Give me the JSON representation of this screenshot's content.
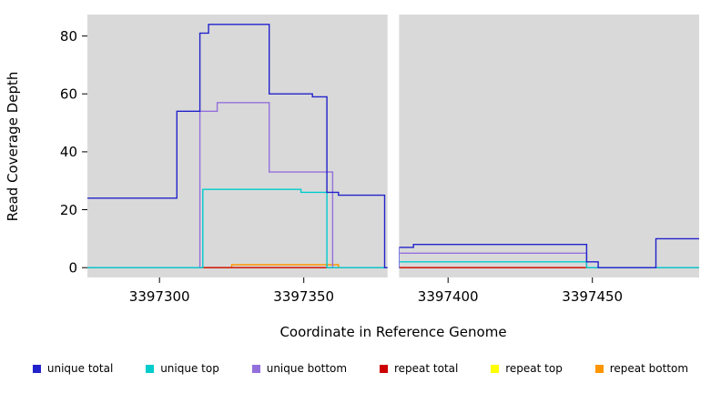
{
  "chart_data": {
    "type": "line",
    "line_style": "step",
    "title": "",
    "xlabel": "Coordinate in Reference Genome",
    "ylabel": "Read Coverage Depth",
    "xlim": [
      3397275,
      3397487
    ],
    "ylim": [
      -3.4,
      87.4
    ],
    "x_ticks": [
      3397300,
      3397350,
      3397400,
      3397450
    ],
    "y_ticks": [
      0,
      20,
      40,
      60,
      80
    ],
    "grid": false,
    "panel_bg": "#d9d9d9",
    "gap_region": {
      "x_start": 3397379,
      "x_end": 3397383
    },
    "legend_position": "bottom",
    "draw_order": [
      5,
      4,
      3,
      2,
      1,
      0
    ],
    "series": [
      {
        "name": "unique total",
        "color": "#2222cc",
        "steps": [
          [
            3397275,
            24
          ],
          [
            3397306,
            54
          ],
          [
            3397314,
            81
          ],
          [
            3397317,
            84
          ],
          [
            3397338,
            60
          ],
          [
            3397353,
            59
          ],
          [
            3397358,
            26
          ],
          [
            3397362,
            25
          ],
          [
            3397378,
            0
          ],
          [
            3397383,
            7
          ],
          [
            3397388,
            8
          ],
          [
            3397448,
            2
          ],
          [
            3397452,
            0
          ],
          [
            3397472,
            10
          ]
        ]
      },
      {
        "name": "unique top",
        "color": "#00cccc",
        "steps": [
          [
            3397275,
            0
          ],
          [
            3397315,
            27
          ],
          [
            3397349,
            26
          ],
          [
            3397358,
            0
          ],
          [
            3397383,
            2
          ],
          [
            3397448,
            0
          ]
        ]
      },
      {
        "name": "unique bottom",
        "color": "#9370db",
        "steps": [
          [
            3397275,
            0
          ],
          [
            3397314,
            54
          ],
          [
            3397320,
            57
          ],
          [
            3397338,
            33
          ],
          [
            3397360,
            0
          ],
          [
            3397383,
            5
          ],
          [
            3397448,
            0
          ]
        ]
      },
      {
        "name": "repeat total",
        "color": "#cc0000",
        "steps": [
          [
            3397275,
            0
          ]
        ]
      },
      {
        "name": "repeat top",
        "color": "#ffff00",
        "steps": [
          [
            3397275,
            0
          ]
        ]
      },
      {
        "name": "repeat bottom",
        "color": "#ff9500",
        "steps": [
          [
            3397275,
            0
          ],
          [
            3397325,
            1
          ],
          [
            3397362,
            0
          ]
        ]
      }
    ]
  }
}
